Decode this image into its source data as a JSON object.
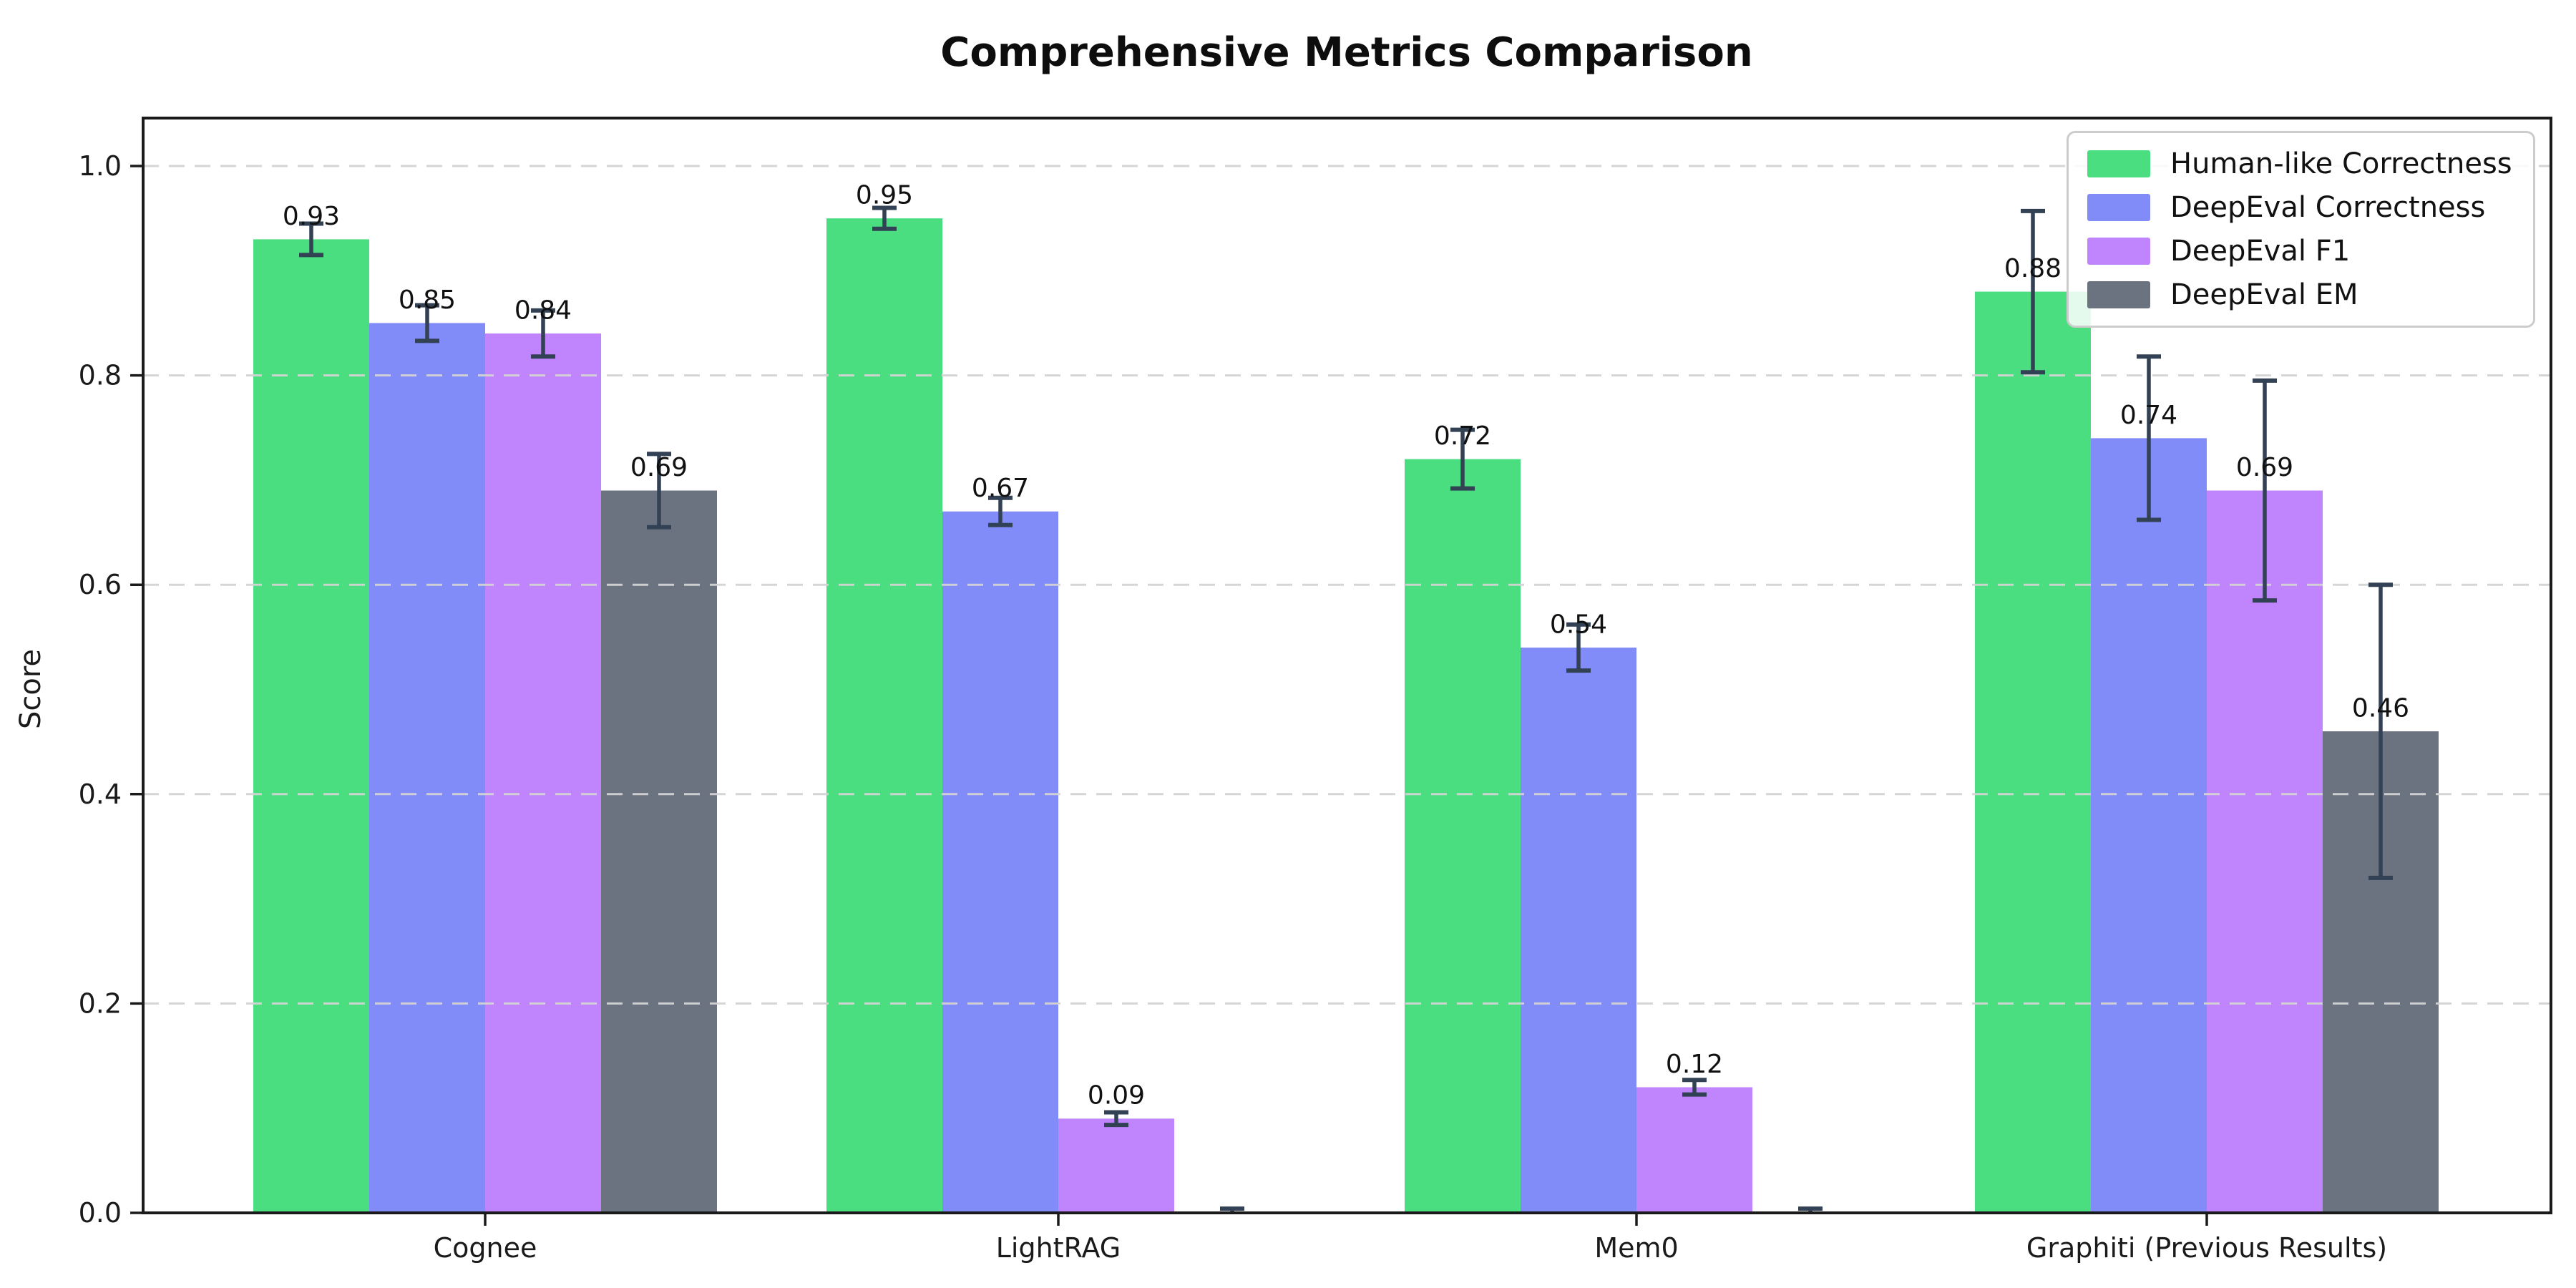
{
  "chart_data": {
    "type": "bar",
    "title": "Comprehensive Metrics Comparison",
    "xlabel": "",
    "ylabel": "Score",
    "ylim": [
      0.0,
      1.046
    ],
    "yticks": [
      0.0,
      0.2,
      0.4,
      0.6,
      0.8,
      1.0
    ],
    "grid": "horizontal-dashed",
    "grid_color": "#d3d3d3",
    "error_bar_color": "#334155",
    "legend_position": "upper right",
    "value_label_decimals": 2,
    "categories": [
      "Cognee",
      "LightRAG",
      "Mem0",
      "Graphiti (Previous Results)"
    ],
    "series": [
      {
        "name": "Human-like Correctness",
        "color": "#4ade80",
        "values": [
          0.93,
          0.95,
          0.72,
          0.88
        ],
        "errors": [
          0.015,
          0.01,
          0.028,
          0.077
        ]
      },
      {
        "name": "DeepEval Correctness",
        "color": "#818cf8",
        "values": [
          0.85,
          0.67,
          0.54,
          0.74
        ],
        "errors": [
          0.017,
          0.013,
          0.022,
          0.078
        ]
      },
      {
        "name": "DeepEval F1",
        "color": "#c084fc",
        "values": [
          0.84,
          0.09,
          0.12,
          0.69
        ],
        "errors": [
          0.022,
          0.006,
          0.007,
          0.105
        ]
      },
      {
        "name": "DeepEval EM",
        "color": "#6b7280",
        "values": [
          0.69,
          0.0,
          0.0,
          0.46
        ],
        "errors": [
          0.035,
          0.004,
          0.004,
          0.14
        ]
      }
    ]
  }
}
